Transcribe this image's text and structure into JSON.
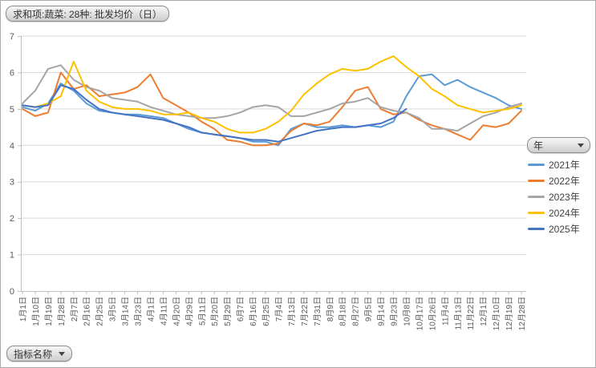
{
  "pivot_buttons": {
    "value_field": "求和项:蔬菜: 28种: 批发均价（日）",
    "legend_field": "年",
    "axis_field": "指标名称"
  },
  "chart_data": {
    "type": "line",
    "title": "求和项:蔬菜: 28种: 批发均价（日）",
    "xlabel": "指标名称 (日期)",
    "ylabel": "",
    "ylim": [
      0,
      7
    ],
    "y_ticks": [
      0,
      1,
      2,
      3,
      4,
      5,
      6,
      7
    ],
    "grid": true,
    "legend_position": "right",
    "legend_title": "年",
    "categories": [
      "1月1日",
      "1月10日",
      "1月19日",
      "1月28日",
      "2月7日",
      "2月16日",
      "2月25日",
      "3月5日",
      "3月14日",
      "3月23日",
      "4月1日",
      "4月11日",
      "4月20日",
      "4月29日",
      "5月11日",
      "5月20日",
      "5月29日",
      "6月7日",
      "6月16日",
      "6月25日",
      "7月4日",
      "7月13日",
      "7月22日",
      "7月31日",
      "8月9日",
      "8月18日",
      "8月27日",
      "9月5日",
      "9月14日",
      "9月23日",
      "10月8日",
      "10月17日",
      "10月26日",
      "11月4日",
      "11月13日",
      "11月22日",
      "12月1日",
      "12月10日",
      "12月19日",
      "12月28日"
    ],
    "series": [
      {
        "name": "2021年",
        "color": "#5B9BD5",
        "values": [
          5.05,
          4.95,
          5.15,
          5.7,
          5.5,
          5.15,
          4.95,
          4.9,
          4.85,
          4.85,
          4.8,
          4.75,
          4.6,
          4.45,
          4.35,
          4.3,
          4.25,
          4.2,
          4.1,
          4.1,
          4.0,
          4.45,
          4.6,
          4.5,
          4.5,
          4.55,
          4.5,
          4.55,
          4.5,
          4.65,
          5.35,
          5.9,
          5.95,
          5.65,
          5.8,
          5.6,
          5.45,
          5.3,
          5.1,
          5.0
        ]
      },
      {
        "name": "2022年",
        "color": "#ED7D31",
        "values": [
          5.0,
          4.8,
          4.9,
          6.0,
          5.55,
          5.65,
          5.35,
          5.4,
          5.45,
          5.6,
          5.95,
          5.3,
          5.1,
          4.9,
          4.65,
          4.45,
          4.15,
          4.1,
          4.0,
          4.0,
          4.05,
          4.4,
          4.6,
          4.55,
          4.65,
          5.05,
          5.5,
          5.6,
          5.0,
          4.85,
          4.9,
          4.7,
          4.55,
          4.45,
          4.3,
          4.15,
          4.55,
          4.5,
          4.6,
          4.95
        ]
      },
      {
        "name": "2023年",
        "color": "#A5A5A5",
        "values": [
          5.15,
          5.5,
          6.1,
          6.2,
          5.8,
          5.6,
          5.5,
          5.3,
          5.25,
          5.2,
          5.05,
          4.95,
          4.85,
          4.8,
          4.75,
          4.75,
          4.8,
          4.9,
          5.05,
          5.1,
          5.05,
          4.8,
          4.8,
          4.9,
          5.0,
          5.15,
          5.2,
          5.3,
          5.05,
          4.95,
          4.9,
          4.75,
          4.45,
          4.45,
          4.4,
          4.6,
          4.8,
          4.9,
          5.05,
          5.15
        ]
      },
      {
        "name": "2024年",
        "color": "#FFC000",
        "values": [
          5.1,
          5.05,
          5.15,
          5.35,
          6.3,
          5.5,
          5.2,
          5.05,
          5.0,
          5.0,
          4.95,
          4.85,
          4.85,
          4.9,
          4.75,
          4.65,
          4.45,
          4.35,
          4.35,
          4.45,
          4.65,
          4.95,
          5.4,
          5.7,
          5.95,
          6.1,
          6.05,
          6.1,
          6.3,
          6.45,
          6.15,
          5.9,
          5.55,
          5.35,
          5.1,
          5.0,
          4.9,
          4.95,
          5.0,
          5.1
        ]
      },
      {
        "name": "2025年",
        "color": "#4472C4",
        "values": [
          5.1,
          5.05,
          5.1,
          5.65,
          5.55,
          5.25,
          5.0,
          4.9,
          4.85,
          4.8,
          4.75,
          4.7,
          4.6,
          4.5,
          4.35,
          4.3,
          4.25,
          4.2,
          4.15,
          4.15,
          4.1,
          4.2,
          4.3,
          4.4,
          4.45,
          4.5,
          4.5,
          4.55,
          4.6,
          4.75,
          5.0,
          null,
          null,
          null,
          null,
          null,
          null,
          null,
          null,
          null
        ]
      }
    ],
    "colors": {
      "gridline": "#D9D9D9",
      "axis": "#BFBFBF",
      "tick_label": "#595959"
    }
  }
}
